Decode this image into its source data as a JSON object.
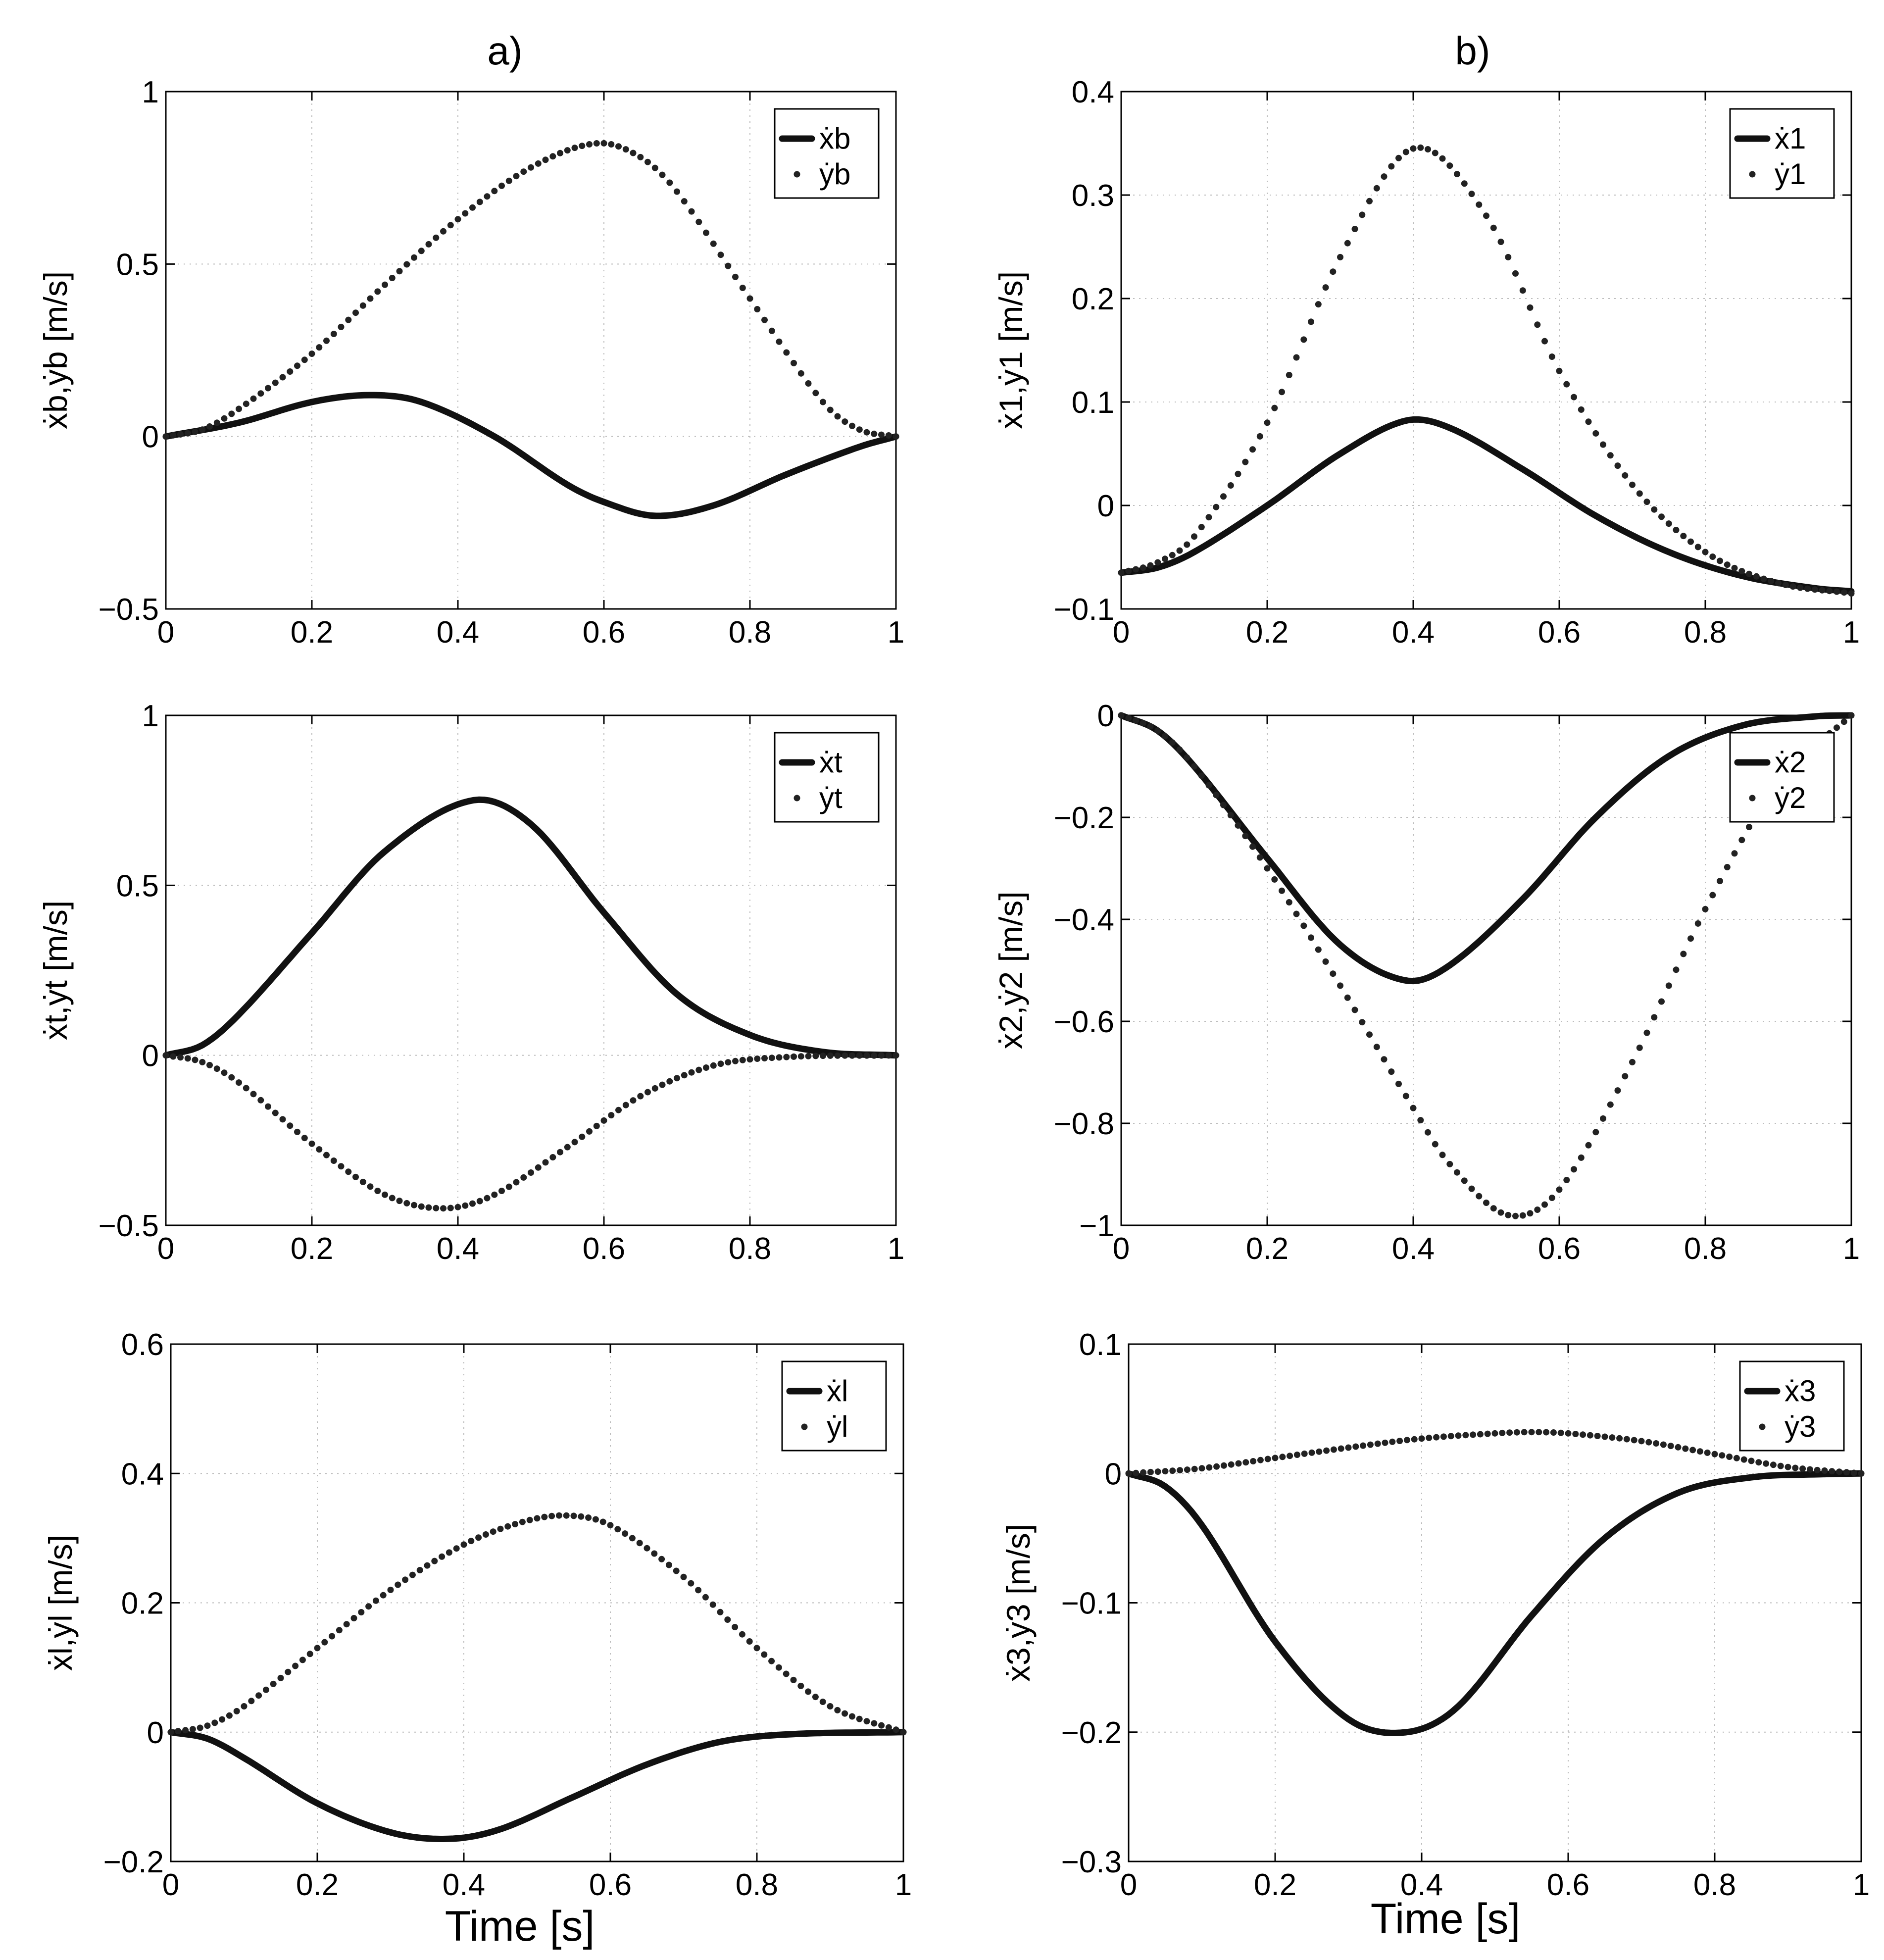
{
  "panel_labels": {
    "a": "a)",
    "b": "b)"
  },
  "xlabel": "Time [s]",
  "chart_data": [
    {
      "type": "line",
      "panel": "a-top",
      "ylabel": "ẋb,ẏb [m/s]",
      "xlim": [
        0,
        1
      ],
      "ylim": [
        -0.5,
        1
      ],
      "xticks": [
        "0",
        "0.2",
        "0.4",
        "0.6",
        "0.8",
        "1"
      ],
      "yticks": [
        {
          "v": -0.5,
          "label": "−0.5"
        },
        {
          "v": 0,
          "label": "0"
        },
        {
          "v": 0.5,
          "label": "0.5"
        },
        {
          "v": 1,
          "label": "1"
        }
      ],
      "legend": [
        "ẋb",
        "ẏb"
      ],
      "legend_loc": "top-right",
      "series": [
        {
          "name": "ẋb",
          "style": "solid",
          "x": [
            0,
            0.1,
            0.2,
            0.28,
            0.35,
            0.45,
            0.55,
            0.6,
            0.67,
            0.75,
            0.85,
            0.95,
            1
          ],
          "y": [
            0,
            0.04,
            0.1,
            0.12,
            0.1,
            0.0,
            -0.14,
            -0.19,
            -0.23,
            -0.2,
            -0.11,
            -0.03,
            0
          ]
        },
        {
          "name": "ẏb",
          "style": "dotted",
          "x": [
            0,
            0.05,
            0.1,
            0.2,
            0.3,
            0.4,
            0.5,
            0.59,
            0.65,
            0.7,
            0.8,
            0.9,
            0.95,
            1
          ],
          "y": [
            0,
            0.02,
            0.08,
            0.24,
            0.44,
            0.63,
            0.78,
            0.85,
            0.81,
            0.71,
            0.4,
            0.1,
            0.02,
            0
          ]
        }
      ]
    },
    {
      "type": "line",
      "panel": "a-middle",
      "ylabel": "ẋt,ẏt [m/s]",
      "xlim": [
        0,
        1
      ],
      "ylim": [
        -0.5,
        1
      ],
      "xticks": [
        "0",
        "0.2",
        "0.4",
        "0.6",
        "0.8",
        "1"
      ],
      "yticks": [
        {
          "v": -0.5,
          "label": "−0.5"
        },
        {
          "v": 0,
          "label": "0"
        },
        {
          "v": 0.5,
          "label": "0.5"
        },
        {
          "v": 1,
          "label": "1"
        }
      ],
      "legend": [
        "ẋt",
        "ẏt"
      ],
      "legend_loc": "top-right",
      "series": [
        {
          "name": "ẋt",
          "style": "solid",
          "x": [
            0,
            0.05,
            0.1,
            0.2,
            0.3,
            0.42,
            0.5,
            0.6,
            0.7,
            0.8,
            0.9,
            1
          ],
          "y": [
            0,
            0.03,
            0.12,
            0.36,
            0.6,
            0.75,
            0.68,
            0.42,
            0.18,
            0.06,
            0.01,
            0
          ]
        },
        {
          "name": "ẏt",
          "style": "dotted",
          "x": [
            0,
            0.05,
            0.1,
            0.2,
            0.3,
            0.38,
            0.45,
            0.55,
            0.65,
            0.75,
            0.85,
            1
          ],
          "y": [
            0,
            -0.02,
            -0.08,
            -0.26,
            -0.41,
            -0.45,
            -0.41,
            -0.27,
            -0.12,
            -0.03,
            -0.005,
            0
          ]
        }
      ]
    },
    {
      "type": "line",
      "panel": "a-bottom",
      "ylabel": "ẋl,ẏl [m/s]",
      "xlim": [
        0,
        1
      ],
      "ylim": [
        -0.2,
        0.6
      ],
      "xticks": [
        "0",
        "0.2",
        "0.4",
        "0.6",
        "0.8",
        "1"
      ],
      "yticks": [
        {
          "v": -0.2,
          "label": "−0.2"
        },
        {
          "v": 0,
          "label": "0"
        },
        {
          "v": 0.2,
          "label": "0.2"
        },
        {
          "v": 0.4,
          "label": "0.4"
        },
        {
          "v": 0.6,
          "label": "0.6"
        }
      ],
      "legend": [
        "ẋl",
        "ẏl"
      ],
      "legend_loc": "top-right",
      "series": [
        {
          "name": "ẋl",
          "style": "solid",
          "x": [
            0,
            0.05,
            0.1,
            0.2,
            0.3,
            0.38,
            0.45,
            0.55,
            0.65,
            0.75,
            0.85,
            1
          ],
          "y": [
            0,
            -0.01,
            -0.04,
            -0.11,
            -0.155,
            -0.165,
            -0.15,
            -0.1,
            -0.05,
            -0.015,
            -0.003,
            0
          ]
        },
        {
          "name": "ẏl",
          "style": "dotted",
          "x": [
            0,
            0.05,
            0.1,
            0.2,
            0.3,
            0.4,
            0.48,
            0.54,
            0.6,
            0.7,
            0.8,
            0.9,
            1
          ],
          "y": [
            0,
            0.01,
            0.04,
            0.13,
            0.22,
            0.29,
            0.325,
            0.335,
            0.32,
            0.24,
            0.13,
            0.04,
            0
          ]
        }
      ]
    },
    {
      "type": "line",
      "panel": "b-top",
      "ylabel": "ẋ1,ẏ1 [m/s]",
      "xlim": [
        0,
        1
      ],
      "ylim": [
        -0.1,
        0.4
      ],
      "xticks": [
        "0",
        "0.2",
        "0.4",
        "0.6",
        "0.8",
        "1"
      ],
      "yticks": [
        {
          "v": -0.1,
          "label": "−0.1"
        },
        {
          "v": 0,
          "label": "0"
        },
        {
          "v": 0.1,
          "label": "0.1"
        },
        {
          "v": 0.2,
          "label": "0.2"
        },
        {
          "v": 0.3,
          "label": "0.3"
        },
        {
          "v": 0.4,
          "label": "0.4"
        }
      ],
      "legend": [
        "ẋ1",
        "ẏ1"
      ],
      "legend_loc": "top-right",
      "series": [
        {
          "name": "ẋ1",
          "style": "solid",
          "x": [
            0,
            0.05,
            0.1,
            0.2,
            0.3,
            0.39,
            0.45,
            0.55,
            0.65,
            0.75,
            0.85,
            0.95,
            1
          ],
          "y": [
            -0.065,
            -0.06,
            -0.045,
            0.0,
            0.05,
            0.082,
            0.075,
            0.035,
            -0.01,
            -0.045,
            -0.068,
            -0.08,
            -0.083
          ]
        },
        {
          "name": "ẏ1",
          "style": "dotted",
          "x": [
            0,
            0.05,
            0.1,
            0.2,
            0.3,
            0.4,
            0.5,
            0.6,
            0.7,
            0.8,
            0.9,
            1
          ],
          "y": [
            -0.065,
            -0.055,
            -0.03,
            0.08,
            0.24,
            0.345,
            0.28,
            0.13,
            0.02,
            -0.045,
            -0.075,
            -0.085
          ]
        }
      ]
    },
    {
      "type": "line",
      "panel": "b-middle",
      "ylabel": "ẋ2,ẏ2 [m/s]",
      "xlim": [
        0,
        1
      ],
      "ylim": [
        -1,
        0
      ],
      "xticks": [
        "0",
        "0.2",
        "0.4",
        "0.6",
        "0.8",
        "1"
      ],
      "yticks": [
        {
          "v": -1,
          "label": "−1"
        },
        {
          "v": -0.8,
          "label": "−0.8"
        },
        {
          "v": -0.6,
          "label": "−0.6"
        },
        {
          "v": -0.4,
          "label": "−0.4"
        },
        {
          "v": -0.2,
          "label": "−0.2"
        },
        {
          "v": 0,
          "label": "0"
        }
      ],
      "legend": [
        "ẋ2",
        "ẏ2"
      ],
      "legend_loc": "top-right",
      "series": [
        {
          "name": "ẋ2",
          "style": "solid",
          "x": [
            0,
            0.05,
            0.1,
            0.2,
            0.3,
            0.39,
            0.45,
            0.55,
            0.65,
            0.75,
            0.85,
            0.95,
            1
          ],
          "y": [
            0,
            -0.03,
            -0.1,
            -0.28,
            -0.45,
            -0.52,
            -0.49,
            -0.36,
            -0.2,
            -0.08,
            -0.02,
            -0.002,
            0
          ]
        },
        {
          "name": "ẏ2",
          "style": "dotted",
          "x": [
            0,
            0.05,
            0.1,
            0.2,
            0.3,
            0.4,
            0.45,
            0.53,
            0.6,
            0.7,
            0.8,
            0.9,
            1
          ],
          "y": [
            0,
            -0.03,
            -0.1,
            -0.3,
            -0.53,
            -0.77,
            -0.88,
            -0.98,
            -0.93,
            -0.68,
            -0.38,
            -0.13,
            0
          ]
        }
      ]
    },
    {
      "type": "line",
      "panel": "b-bottom",
      "ylabel": "ẋ3,ẏ3 [m/s]",
      "xlim": [
        0,
        1
      ],
      "ylim": [
        -0.3,
        0.1
      ],
      "xticks": [
        "0",
        "0.2",
        "0.4",
        "0.6",
        "0.8",
        "1"
      ],
      "yticks": [
        {
          "v": -0.3,
          "label": "−0.3"
        },
        {
          "v": -0.2,
          "label": "−0.2"
        },
        {
          "v": -0.1,
          "label": "−0.1"
        },
        {
          "v": 0,
          "label": "0"
        },
        {
          "v": 0.1,
          "label": "0.1"
        }
      ],
      "legend": [
        "ẋ3",
        "ẏ3"
      ],
      "legend_loc": "top-right",
      "series": [
        {
          "name": "ẋ3",
          "style": "solid",
          "x": [
            0,
            0.05,
            0.1,
            0.2,
            0.3,
            0.38,
            0.45,
            0.55,
            0.65,
            0.75,
            0.85,
            0.95,
            1
          ],
          "y": [
            0,
            -0.01,
            -0.04,
            -0.13,
            -0.19,
            -0.2,
            -0.18,
            -0.11,
            -0.05,
            -0.015,
            -0.003,
            -0.0005,
            0
          ]
        },
        {
          "name": "ẏ3",
          "style": "dotted",
          "x": [
            0,
            0.1,
            0.2,
            0.3,
            0.4,
            0.5,
            0.55,
            0.6,
            0.7,
            0.8,
            0.9,
            1
          ],
          "y": [
            0,
            0.004,
            0.012,
            0.02,
            0.027,
            0.031,
            0.032,
            0.031,
            0.025,
            0.015,
            0.005,
            0
          ]
        }
      ]
    }
  ]
}
